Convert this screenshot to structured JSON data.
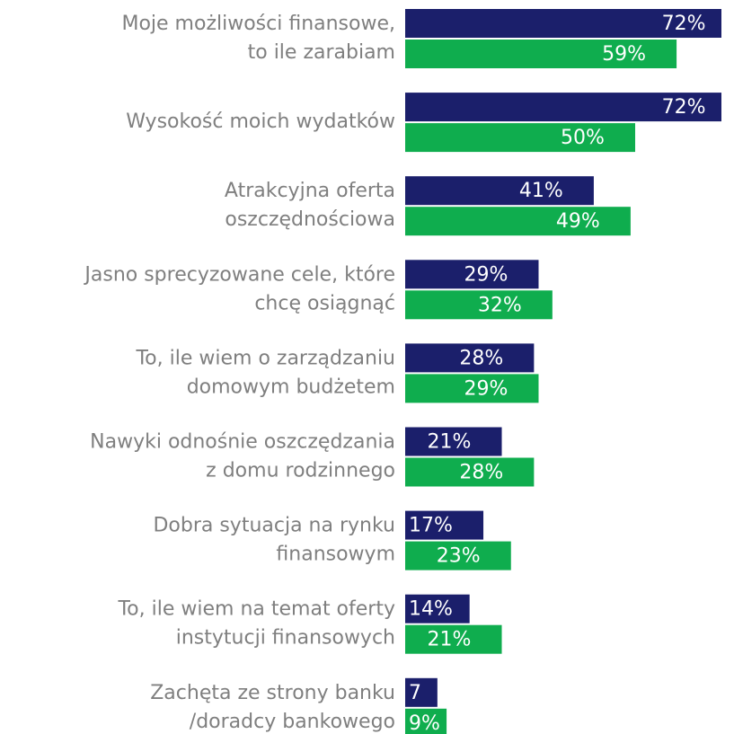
{
  "chart_data": {
    "type": "bar",
    "orientation": "horizontal",
    "categories": [
      [
        "Moje możliwości finansowe,",
        "to ile zarabiam"
      ],
      [
        "Wysokość moich wydatków"
      ],
      [
        "Atrakcyjna oferta",
        "oszczędnościowa"
      ],
      [
        "Jasno sprecyzowane cele, które",
        "chcę osiągnąć"
      ],
      [
        "To, ile wiem o zarządzaniu",
        "domowym budżetem"
      ],
      [
        "Nawyki odnośnie oszczędzania",
        "z domu rodzinnego"
      ],
      [
        "Dobra sytuacja na rynku",
        "finansowym"
      ],
      [
        "To, ile wiem na temat oferty",
        "instytucji finansowych"
      ],
      [
        "Zachęta ze strony banku",
        "/doradcy bankowego"
      ]
    ],
    "series": [
      {
        "color": "#1b1f6b",
        "values": [
          72,
          72,
          41,
          29,
          28,
          21,
          17,
          14,
          7
        ],
        "value_labels": [
          "72%",
          "72%",
          "41%",
          "29%",
          "28%",
          "21%",
          "17%",
          "14%",
          "7"
        ]
      },
      {
        "color": "#0fad4e",
        "values": [
          59,
          50,
          49,
          32,
          29,
          28,
          23,
          21,
          9
        ],
        "value_labels": [
          "59%",
          "50%",
          "49%",
          "32%",
          "29%",
          "28%",
          "23%",
          "21%",
          "9%"
        ]
      }
    ]
  }
}
